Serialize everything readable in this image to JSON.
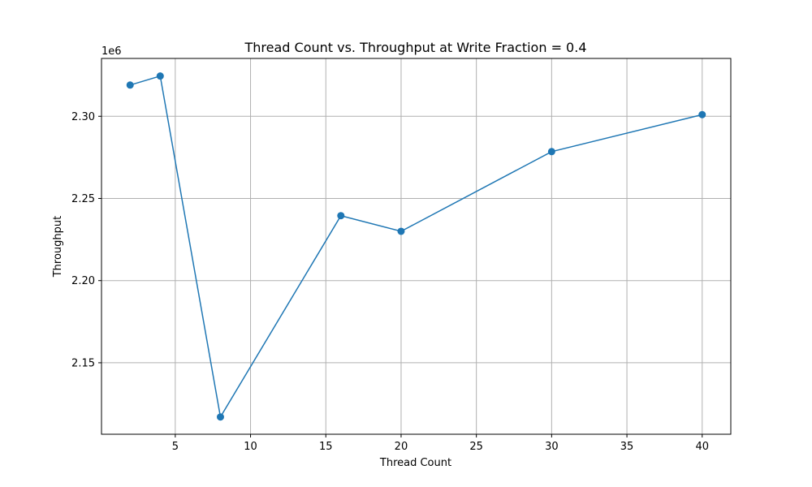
{
  "chart_data": {
    "type": "line",
    "title": "Thread Count vs. Throughput at Write Fraction = 0.4",
    "xlabel": "Thread Count",
    "ylabel": "Throughput",
    "y_offset_label": "1e6",
    "x_ticks": [
      5,
      10,
      15,
      20,
      25,
      30,
      35,
      40
    ],
    "y_ticks": [
      2.15,
      2.2,
      2.25,
      2.3
    ],
    "y_tick_labels": [
      "2.15",
      "2.20",
      "2.25",
      "2.30"
    ],
    "xlim": [
      0.1,
      41.9
    ],
    "ylim": [
      2.1065,
      2.3352
    ],
    "grid": true,
    "series": [
      {
        "color": "#1f77b4",
        "marker": "circle",
        "x": [
          2,
          4,
          8,
          16,
          20,
          30,
          40
        ],
        "y": [
          2.319,
          2.3245,
          2.117,
          2.2395,
          2.23,
          2.2785,
          2.301
        ]
      }
    ]
  }
}
